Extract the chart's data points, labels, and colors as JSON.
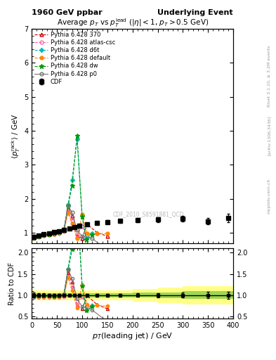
{
  "title_left": "1960 GeV ppbar",
  "title_right": "Underlying Event",
  "plot_title": "Average $p_T$ vs $p_T^{\\mathrm{lead}}$ ($|\\eta| < 1$, $p_T > 0.5$ GeV)",
  "xlabel": "$p_T$(leading jet) / GeV",
  "ylabel_main": "$\\langle p_T^{\\mathrm{rack}} \\rangle$ / GeV",
  "ylabel_ratio": "Ratio to CDF",
  "watermark": "CDF_2010_S8591881_QCD",
  "right_label1": "Rivet 3.1.10, ≥ 3.2M events",
  "right_label2": "[arXiv:1306.3436]",
  "right_label3": "mcplots.cern.ch",
  "xlim": [
    0,
    400
  ],
  "ylim_main": [
    0.7,
    7.0
  ],
  "ylim_ratio": [
    0.45,
    2.1
  ],
  "cdf_x": [
    4.5,
    14,
    24,
    34,
    44,
    54,
    64,
    75,
    85,
    95,
    110,
    130,
    150,
    175,
    210,
    250,
    300,
    350,
    390
  ],
  "cdf_y": [
    0.88,
    0.92,
    0.96,
    0.99,
    1.02,
    1.05,
    1.08,
    1.13,
    1.17,
    1.21,
    1.26,
    1.29,
    1.32,
    1.35,
    1.37,
    1.39,
    1.41,
    1.34,
    1.44
  ],
  "cdf_yerr": [
    0.05,
    0.04,
    0.04,
    0.03,
    0.03,
    0.03,
    0.03,
    0.03,
    0.03,
    0.04,
    0.04,
    0.04,
    0.05,
    0.05,
    0.06,
    0.07,
    0.08,
    0.1,
    0.12
  ],
  "p370_x": [
    4.5,
    14,
    24,
    34,
    44,
    54,
    64,
    72,
    80,
    90,
    100,
    110,
    130,
    150
  ],
  "p370_y": [
    0.86,
    0.9,
    0.94,
    0.97,
    1.0,
    1.03,
    1.08,
    1.7,
    1.5,
    0.9,
    0.84,
    1.25,
    1.0,
    0.9
  ],
  "patlas_x": [
    4.5,
    14,
    24,
    34,
    44,
    54,
    64,
    72,
    80,
    90,
    100,
    110,
    130
  ],
  "patlas_y": [
    0.83,
    0.87,
    0.91,
    0.94,
    0.96,
    0.99,
    1.04,
    1.62,
    1.38,
    0.93,
    1.18,
    0.95,
    0.98
  ],
  "pd6t_x": [
    4.5,
    14,
    24,
    34,
    44,
    54,
    64,
    72,
    80,
    90,
    100,
    108,
    120
  ],
  "pd6t_y": [
    0.85,
    0.89,
    0.93,
    0.96,
    0.99,
    1.04,
    1.11,
    1.82,
    2.55,
    3.75,
    1.52,
    0.83,
    0.98
  ],
  "pdef_x": [
    4.5,
    14,
    24,
    34,
    44,
    54,
    64,
    72,
    80,
    90,
    100,
    110,
    130,
    150
  ],
  "pdef_y": [
    0.86,
    0.89,
    0.92,
    0.95,
    0.97,
    1.01,
    1.07,
    1.58,
    1.28,
    0.83,
    1.53,
    0.98,
    0.98,
    0.98
  ],
  "pdw_x": [
    4.5,
    14,
    24,
    34,
    44,
    54,
    64,
    72,
    80,
    90,
    100,
    108,
    120
  ],
  "pdw_y": [
    0.86,
    0.9,
    0.94,
    0.97,
    0.99,
    1.03,
    1.09,
    1.77,
    2.38,
    3.85,
    1.48,
    0.8,
    0.93
  ],
  "pp0_x": [
    4.5,
    14,
    24,
    34,
    44,
    54,
    64,
    72,
    80,
    90,
    100,
    120,
    150
  ],
  "pp0_y": [
    0.89,
    0.92,
    0.95,
    0.98,
    1.01,
    1.04,
    1.11,
    1.8,
    1.6,
    1.08,
    0.9,
    0.83,
    0.5
  ],
  "band_x": [
    0,
    25,
    50,
    75,
    100,
    125,
    150,
    200,
    250,
    300,
    350,
    400
  ],
  "band_yellow": [
    0.12,
    0.12,
    0.12,
    0.12,
    0.12,
    0.12,
    0.12,
    0.15,
    0.18,
    0.22,
    0.22,
    0.35
  ],
  "band_green": [
    0.05,
    0.05,
    0.05,
    0.05,
    0.05,
    0.05,
    0.05,
    0.06,
    0.07,
    0.09,
    0.09,
    0.15
  ],
  "c370": "#cc0000",
  "catlas": "#ff69b4",
  "cd6t": "#00bbbb",
  "cdef": "#ff8800",
  "cdw": "#009900",
  "cp0": "#777777"
}
